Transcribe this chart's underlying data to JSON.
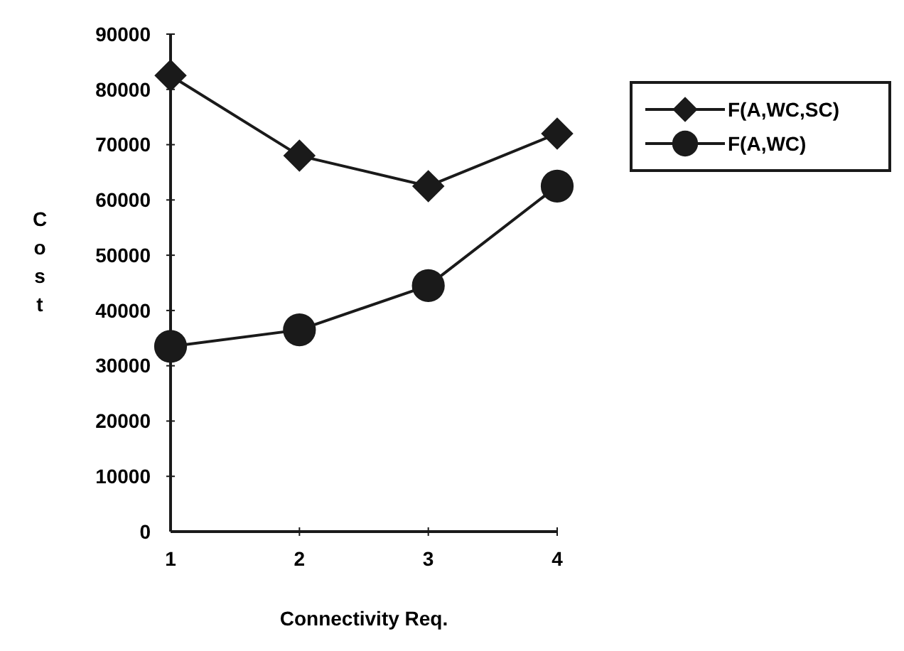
{
  "chart_data": {
    "type": "line",
    "xlabel": "Connectivity Req.",
    "ylabel": "Cost",
    "categories": [
      "1",
      "2",
      "3",
      "4"
    ],
    "ylim": [
      0,
      90000
    ],
    "yticks": [
      0,
      10000,
      20000,
      30000,
      40000,
      50000,
      60000,
      70000,
      80000,
      90000
    ],
    "grid": false,
    "legend": "right",
    "series": [
      {
        "name": "F(A,WC,SC)",
        "color": "#1a1a1a",
        "marker": "diamond",
        "values": [
          82500,
          68000,
          62500,
          72000
        ]
      },
      {
        "name": "F(A,WC)",
        "color": "#1a1a1a",
        "marker": "circle",
        "values": [
          33500,
          36500,
          44500,
          62500
        ]
      }
    ]
  }
}
